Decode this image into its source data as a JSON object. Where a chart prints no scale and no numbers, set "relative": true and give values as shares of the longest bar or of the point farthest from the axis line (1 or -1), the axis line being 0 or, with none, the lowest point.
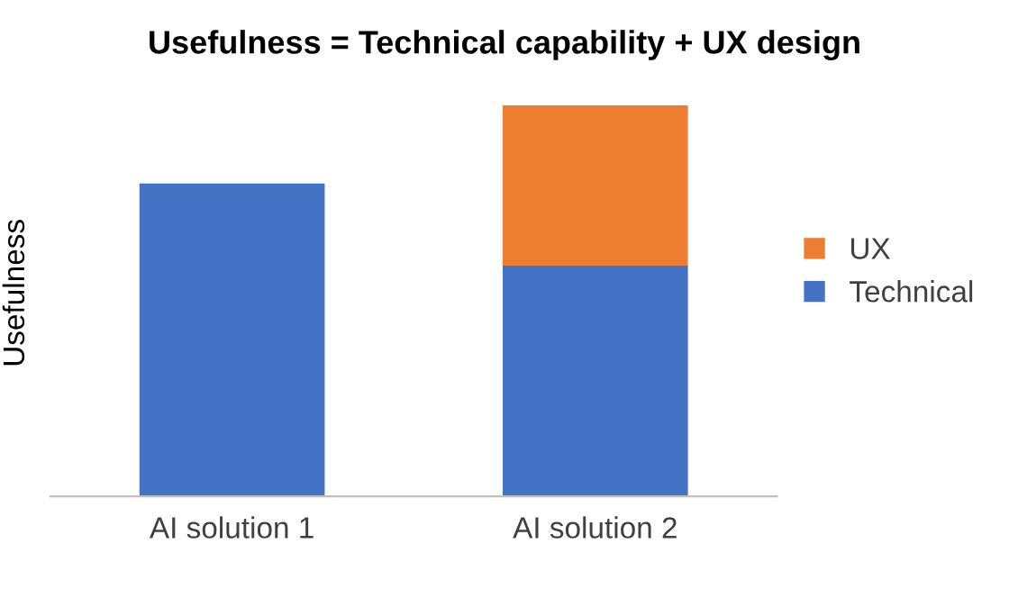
{
  "chart_data": {
    "type": "bar",
    "title": "Usefulness = Technical capability + UX design",
    "ylabel": "Usefulness",
    "categories": [
      "AI solution 1",
      "AI solution 2"
    ],
    "stacked": true,
    "relative": true,
    "legend": "right",
    "series": [
      {
        "name": "Technical",
        "color": "#4472c4",
        "values": [
          0.8,
          0.59
        ]
      },
      {
        "name": "UX",
        "color": "#ed7d31",
        "values": [
          0,
          0.41
        ]
      }
    ]
  }
}
